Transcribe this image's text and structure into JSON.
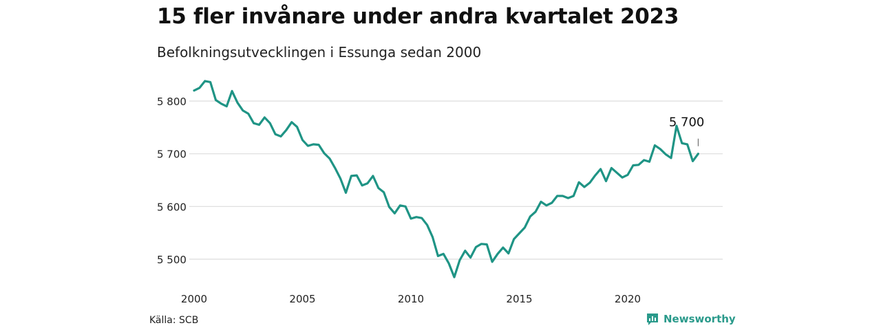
{
  "title": "15 fler invånare under andra kvartalet 2023",
  "subtitle": "Befolkningsutvecklingen i Essunga sedan 2000",
  "source": "Källa: SCB",
  "brand": {
    "name": "Newsworthy",
    "icon": "newsworthy-logo-icon",
    "color": "#2a9a8b"
  },
  "chart_data": {
    "type": "line",
    "line_color": "#1f9485",
    "grid": true,
    "xlim": [
      2000,
      2024.5
    ],
    "ylim": [
      5455,
      5850
    ],
    "x_ticks": [
      2000,
      2005,
      2010,
      2015,
      2020
    ],
    "x_tick_labels": [
      "2000",
      "2005",
      "2010",
      "2015",
      "2020"
    ],
    "y_ticks": [
      5500,
      5600,
      5700,
      5800
    ],
    "y_tick_labels": [
      "5 500",
      "5 600",
      "5 700",
      "5 800"
    ],
    "annotation": {
      "text": "5 700",
      "x": 2023.25,
      "y": 5700
    },
    "series": [
      {
        "x": [
          2000.0,
          2000.25,
          2000.5,
          2000.75,
          2001.0,
          2001.25,
          2001.5,
          2001.75,
          2002.0,
          2002.25,
          2002.5,
          2002.75,
          2003.0,
          2003.25,
          2003.5,
          2003.75,
          2004.0,
          2004.25,
          2004.5,
          2004.75,
          2005.0,
          2005.25,
          2005.5,
          2005.75,
          2006.0,
          2006.25,
          2006.5,
          2006.75,
          2007.0,
          2007.25,
          2007.5,
          2007.75,
          2008.0,
          2008.25,
          2008.5,
          2008.75,
          2009.0,
          2009.25,
          2009.5,
          2009.75,
          2010.0,
          2010.25,
          2010.5,
          2010.75,
          2011.0,
          2011.25,
          2011.5,
          2011.75,
          2012.0,
          2012.25,
          2012.5,
          2012.75,
          2013.0,
          2013.25,
          2013.5,
          2013.75,
          2014.0,
          2014.25,
          2014.5,
          2014.75,
          2015.0,
          2015.25,
          2015.5,
          2015.75,
          2016.0,
          2016.25,
          2016.5,
          2016.75,
          2017.0,
          2017.25,
          2017.5,
          2017.75,
          2018.0,
          2018.25,
          2018.5,
          2018.75,
          2019.0,
          2019.25,
          2019.5,
          2019.75,
          2020.0,
          2020.25,
          2020.5,
          2020.75,
          2021.0,
          2021.25,
          2021.5,
          2021.75,
          2022.0,
          2022.25,
          2022.5,
          2022.75,
          2023.0,
          2023.25
        ],
        "values": [
          5820,
          5825,
          5838,
          5836,
          5802,
          5795,
          5790,
          5819,
          5797,
          5782,
          5776,
          5758,
          5755,
          5769,
          5758,
          5737,
          5733,
          5745,
          5760,
          5751,
          5726,
          5715,
          5718,
          5717,
          5701,
          5691,
          5673,
          5653,
          5626,
          5658,
          5659,
          5640,
          5644,
          5658,
          5635,
          5627,
          5599,
          5587,
          5602,
          5600,
          5577,
          5580,
          5578,
          5565,
          5542,
          5506,
          5510,
          5492,
          5466,
          5498,
          5516,
          5503,
          5523,
          5529,
          5528,
          5495,
          5510,
          5522,
          5511,
          5538,
          5549,
          5560,
          5581,
          5590,
          5609,
          5602,
          5607,
          5620,
          5620,
          5616,
          5620,
          5646,
          5637,
          5645,
          5659,
          5671,
          5648,
          5673,
          5664,
          5655,
          5660,
          5678,
          5679,
          5688,
          5685,
          5716,
          5709,
          5699,
          5692,
          5753,
          5720,
          5718,
          5686,
          5700
        ]
      }
    ]
  }
}
